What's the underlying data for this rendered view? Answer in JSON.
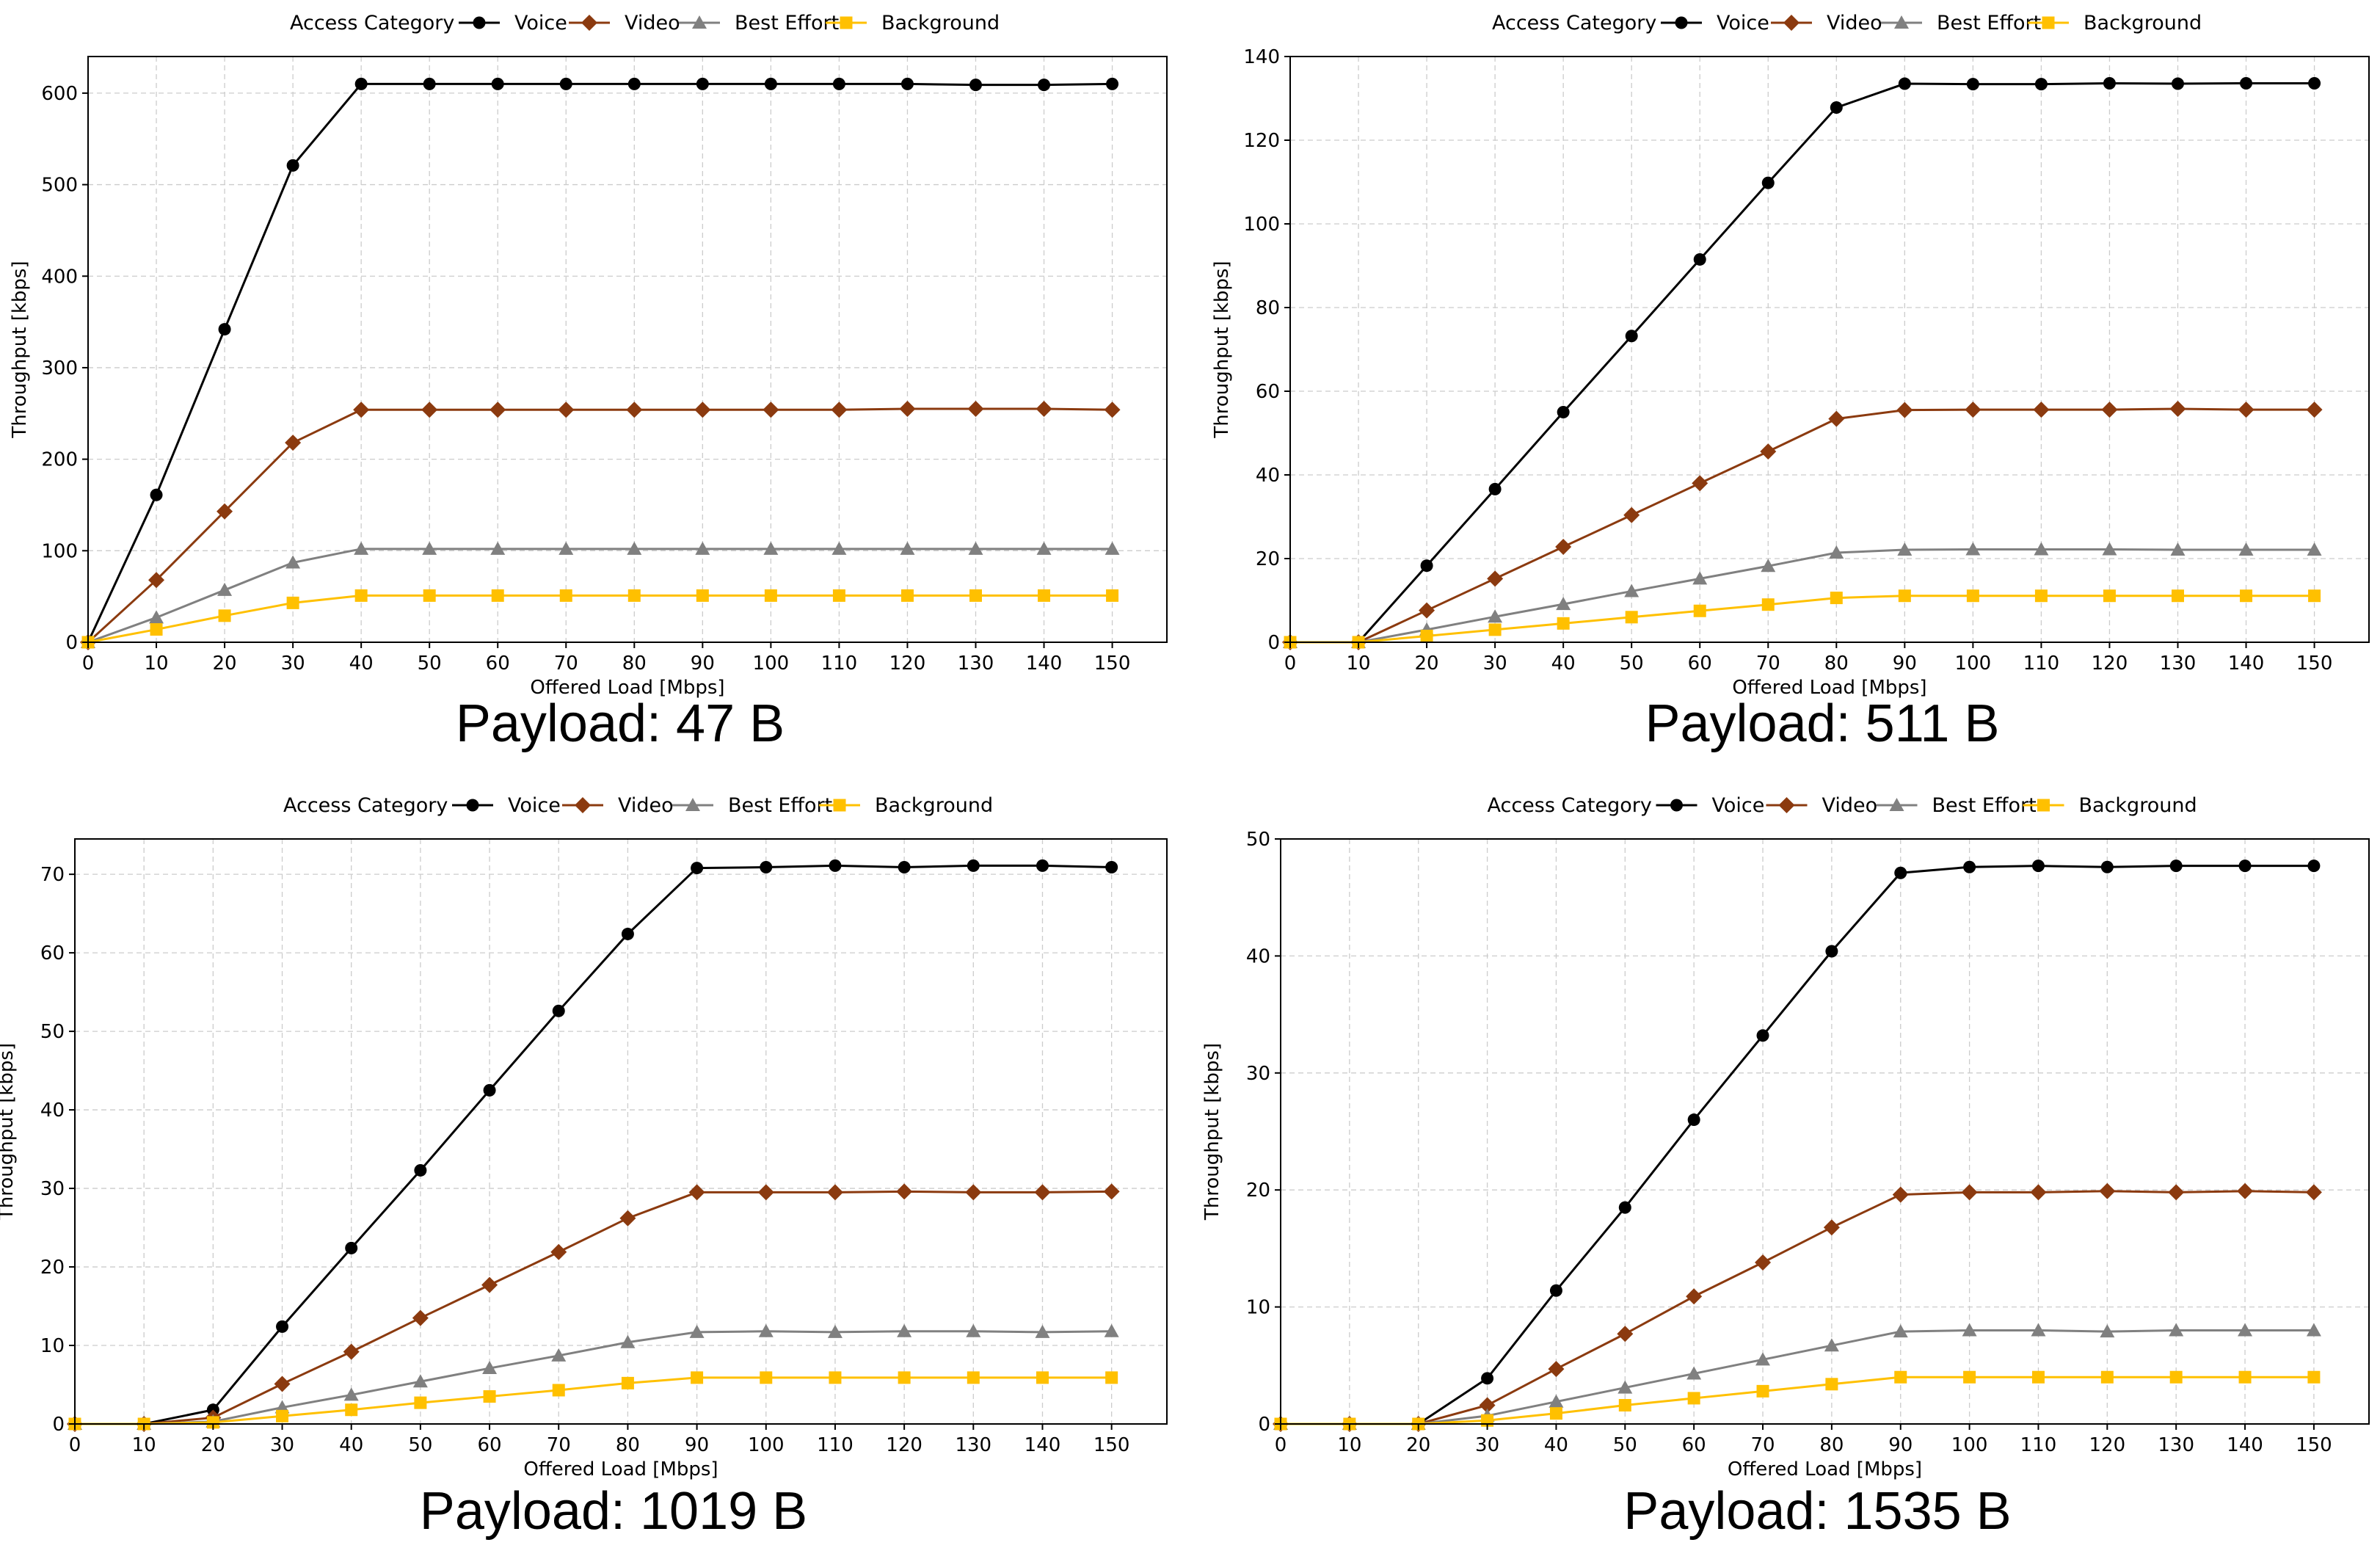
{
  "legend": {
    "title": "Access Category",
    "entries": [
      {
        "name": "Voice",
        "color": "#000000",
        "marker": "circle"
      },
      {
        "name": "Video",
        "color": "#8B3A0F",
        "marker": "diamond"
      },
      {
        "name": "Best Effort",
        "color": "#808080",
        "marker": "triangle"
      },
      {
        "name": "Background",
        "color": "#FFC000",
        "marker": "square"
      }
    ],
    "placement": "top-center, above plot"
  },
  "chart_data": [
    {
      "type": "line",
      "caption": "Payload: 47 B",
      "xlabel": "Offered Load [Mbps]",
      "ylabel": "Throughput [kbps]",
      "xlim": [
        0,
        158
      ],
      "ylim": [
        0,
        640
      ],
      "xticks": [
        0,
        10,
        20,
        30,
        40,
        50,
        60,
        70,
        80,
        90,
        100,
        110,
        120,
        130,
        140,
        150
      ],
      "yticks": [
        0,
        100,
        200,
        300,
        400,
        500,
        600
      ],
      "grid": true,
      "x": [
        0,
        10,
        20,
        30,
        40,
        50,
        60,
        70,
        80,
        90,
        100,
        110,
        120,
        130,
        140,
        150
      ],
      "series": [
        {
          "name": "Voice",
          "values": [
            0,
            161,
            342,
            521,
            610,
            610,
            610,
            610,
            610,
            610,
            610,
            610,
            610,
            609,
            609,
            610
          ]
        },
        {
          "name": "Video",
          "values": [
            0,
            68,
            143,
            218,
            254,
            254,
            254,
            254,
            254,
            254,
            254,
            254,
            255,
            255,
            255,
            254
          ]
        },
        {
          "name": "Best Effort",
          "values": [
            0,
            27,
            57,
            87,
            102,
            102,
            102,
            102,
            102,
            102,
            102,
            102,
            102,
            102,
            102,
            102
          ]
        },
        {
          "name": "Background",
          "values": [
            0,
            14,
            29,
            43,
            51,
            51,
            51,
            51,
            51,
            51,
            51,
            51,
            51,
            51,
            51,
            51
          ]
        }
      ]
    },
    {
      "type": "line",
      "caption": "Payload: 511 B",
      "xlabel": "Offered Load [Mbps]",
      "ylabel": "Throughput [kbps]",
      "xlim": [
        0,
        158
      ],
      "ylim": [
        0,
        140
      ],
      "xticks": [
        0,
        10,
        20,
        30,
        40,
        50,
        60,
        70,
        80,
        90,
        100,
        110,
        120,
        130,
        140,
        150
      ],
      "yticks": [
        0,
        20,
        40,
        60,
        80,
        100,
        120,
        140
      ],
      "grid": true,
      "x": [
        0,
        10,
        20,
        30,
        40,
        50,
        60,
        70,
        80,
        90,
        100,
        110,
        120,
        130,
        140,
        150
      ],
      "series": [
        {
          "name": "Voice",
          "values": [
            0,
            0,
            18.3,
            36.6,
            55,
            73.2,
            91.5,
            109.8,
            127.8,
            133.5,
            133.4,
            133.4,
            133.6,
            133.5,
            133.6,
            133.6
          ]
        },
        {
          "name": "Video",
          "values": [
            0,
            0,
            7.6,
            15.2,
            22.8,
            30.4,
            38,
            45.6,
            53.4,
            55.5,
            55.6,
            55.6,
            55.6,
            55.8,
            55.6,
            55.6
          ]
        },
        {
          "name": "Best Effort",
          "values": [
            0,
            0,
            3,
            6.1,
            9.1,
            12.2,
            15.2,
            18.2,
            21.4,
            22.1,
            22.2,
            22.2,
            22.2,
            22.1,
            22.1,
            22.1
          ]
        },
        {
          "name": "Background",
          "values": [
            0,
            0,
            1.5,
            3,
            4.5,
            6,
            7.5,
            9,
            10.6,
            11.1,
            11.1,
            11.1,
            11.1,
            11.1,
            11.1,
            11.1
          ]
        }
      ]
    },
    {
      "type": "line",
      "caption": "Payload: 1019 B",
      "xlabel": "Offered Load [Mbps]",
      "ylabel": "Throughput [kbps]",
      "xlim": [
        0,
        158
      ],
      "ylim": [
        0,
        74.5
      ],
      "xticks": [
        0,
        10,
        20,
        30,
        40,
        50,
        60,
        70,
        80,
        90,
        100,
        110,
        120,
        130,
        140,
        150
      ],
      "yticks": [
        0,
        10,
        20,
        30,
        40,
        50,
        60,
        70
      ],
      "grid": true,
      "x": [
        0,
        10,
        20,
        30,
        40,
        50,
        60,
        70,
        80,
        90,
        100,
        110,
        120,
        130,
        140,
        150
      ],
      "series": [
        {
          "name": "Voice",
          "values": [
            0,
            0,
            1.8,
            12.4,
            22.4,
            32.3,
            42.5,
            52.6,
            62.4,
            70.8,
            70.9,
            71.1,
            70.9,
            71.1,
            71.1,
            70.9
          ]
        },
        {
          "name": "Video",
          "values": [
            0,
            0,
            0.8,
            5.1,
            9.2,
            13.5,
            17.7,
            21.9,
            26.2,
            29.5,
            29.5,
            29.5,
            29.6,
            29.5,
            29.5,
            29.6
          ]
        },
        {
          "name": "Best Effort",
          "values": [
            0,
            0,
            0.3,
            2.1,
            3.7,
            5.4,
            7.1,
            8.7,
            10.4,
            11.7,
            11.8,
            11.7,
            11.8,
            11.8,
            11.7,
            11.8
          ]
        },
        {
          "name": "Background",
          "values": [
            0,
            0,
            0.2,
            1,
            1.8,
            2.7,
            3.5,
            4.3,
            5.2,
            5.9,
            5.9,
            5.9,
            5.9,
            5.9,
            5.9,
            5.9
          ]
        }
      ]
    },
    {
      "type": "line",
      "caption": "Payload: 1535 B",
      "xlabel": "Offered Load [Mbps]",
      "ylabel": "Throughput [kbps]",
      "xlim": [
        0,
        158
      ],
      "ylim": [
        0,
        50
      ],
      "xticks": [
        0,
        10,
        20,
        30,
        40,
        50,
        60,
        70,
        80,
        90,
        100,
        110,
        120,
        130,
        140,
        150
      ],
      "yticks": [
        0,
        10,
        20,
        30,
        40,
        50
      ],
      "grid": true,
      "x": [
        0,
        10,
        20,
        30,
        40,
        50,
        60,
        70,
        80,
        90,
        100,
        110,
        120,
        130,
        140,
        150
      ],
      "series": [
        {
          "name": "Voice",
          "values": [
            0,
            0,
            0,
            3.9,
            11.4,
            18.5,
            26,
            33.2,
            40.4,
            47.1,
            47.6,
            47.7,
            47.6,
            47.7,
            47.7,
            47.7
          ]
        },
        {
          "name": "Video",
          "values": [
            0,
            0,
            0,
            1.6,
            4.7,
            7.7,
            10.9,
            13.8,
            16.8,
            19.6,
            19.8,
            19.8,
            19.9,
            19.8,
            19.9,
            19.8
          ]
        },
        {
          "name": "Best Effort",
          "values": [
            0,
            0,
            0,
            0.7,
            1.9,
            3.1,
            4.3,
            5.5,
            6.7,
            7.9,
            8,
            8,
            7.9,
            8,
            8,
            8
          ]
        },
        {
          "name": "Background",
          "values": [
            0,
            0,
            0,
            0.3,
            0.9,
            1.6,
            2.2,
            2.8,
            3.4,
            4,
            4,
            4,
            4,
            4,
            4,
            4
          ]
        }
      ]
    }
  ]
}
